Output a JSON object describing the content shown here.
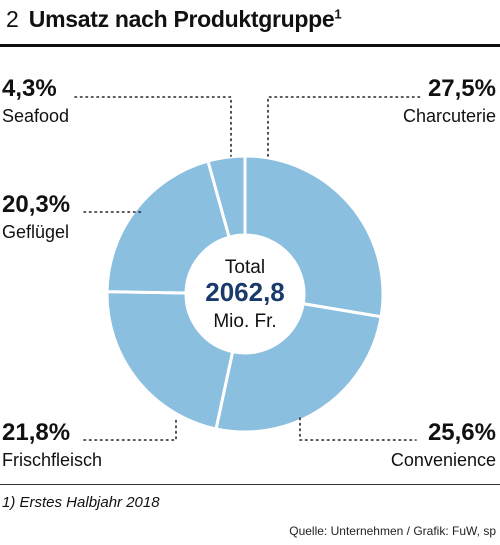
{
  "header": {
    "number": "2",
    "title": "Umsatz nach Produktgruppe",
    "footnote_marker": "1"
  },
  "chart_data": {
    "type": "pie",
    "title": "Umsatz nach Produktgruppe",
    "center": {
      "label_top": "Total",
      "value": "2062,8",
      "unit": "Mio. Fr."
    },
    "slices": [
      {
        "name": "Charcuterie",
        "value": 27.5,
        "label": "27,5%"
      },
      {
        "name": "Convenience",
        "value": 25.6,
        "label": "25,6%"
      },
      {
        "name": "Frischfleisch",
        "value": 21.8,
        "label": "21,8%"
      },
      {
        "name": "Geflügel",
        "value": 20.3,
        "label": "20,3%"
      },
      {
        "name": "Seafood",
        "value": 4.3,
        "label": "4,3%"
      }
    ],
    "colors": {
      "slice": "#8bbfe0",
      "separator": "#ffffff",
      "total_value": "#1a3a6b"
    }
  },
  "footer": {
    "footnote": "1) Erstes Halbjahr 2018",
    "source": "Quelle: Unternehmen / Grafik: FuW, sp"
  }
}
